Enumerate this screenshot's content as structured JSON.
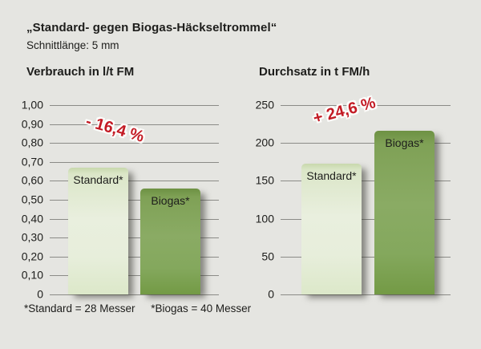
{
  "header": {
    "title": "„Standard- gegen Biogas-Häckseltrommel“",
    "subtitle": "Schnittlänge: 5 mm"
  },
  "footnote": {
    "standard_note": "*Standard = 28 Messer",
    "biogas_note": "*Biogas = 40 Messer"
  },
  "colors": {
    "background": "#e5e5e1",
    "text": "#1d1d1b",
    "gridline": "#8b8b87",
    "annotation_red": "#c31a24",
    "bar_standard_light_green": "#e6edda",
    "bar_biogas_green": "#84a75d"
  },
  "chart_data": [
    {
      "type": "bar",
      "title": "Verbrauch in l/t FM",
      "categories": [
        "Standard*",
        "Biogas*"
      ],
      "values": [
        0.67,
        0.56
      ],
      "annotation": "- 16,4 %",
      "ylim": [
        0,
        1.0
      ],
      "grid": true,
      "legend": "none",
      "yticks": [
        {
          "value": 1.0,
          "label": "1,00"
        },
        {
          "value": 0.9,
          "label": "0,90"
        },
        {
          "value": 0.8,
          "label": "0,80"
        },
        {
          "value": 0.7,
          "label": "0,70"
        },
        {
          "value": 0.6,
          "label": "0,60"
        },
        {
          "value": 0.5,
          "label": "0,50"
        },
        {
          "value": 0.4,
          "label": "0,40"
        },
        {
          "value": 0.3,
          "label": "0,30"
        },
        {
          "value": 0.2,
          "label": "0,20"
        },
        {
          "value": 0.1,
          "label": "0,10"
        },
        {
          "value": 0,
          "label": "0"
        }
      ]
    },
    {
      "type": "bar",
      "title": "Durchsatz in t FM/h",
      "categories": [
        "Standard*",
        "Biogas*"
      ],
      "values": [
        173,
        215.6
      ],
      "annotation": "+ 24,6 %",
      "ylim": [
        0,
        250
      ],
      "grid": true,
      "legend": "none",
      "yticks": [
        {
          "value": 250,
          "label": "250"
        },
        {
          "value": 200,
          "label": "200"
        },
        {
          "value": 150,
          "label": "150"
        },
        {
          "value": 100,
          "label": "100"
        },
        {
          "value": 50,
          "label": "50"
        },
        {
          "value": 0,
          "label": "0"
        }
      ]
    }
  ]
}
